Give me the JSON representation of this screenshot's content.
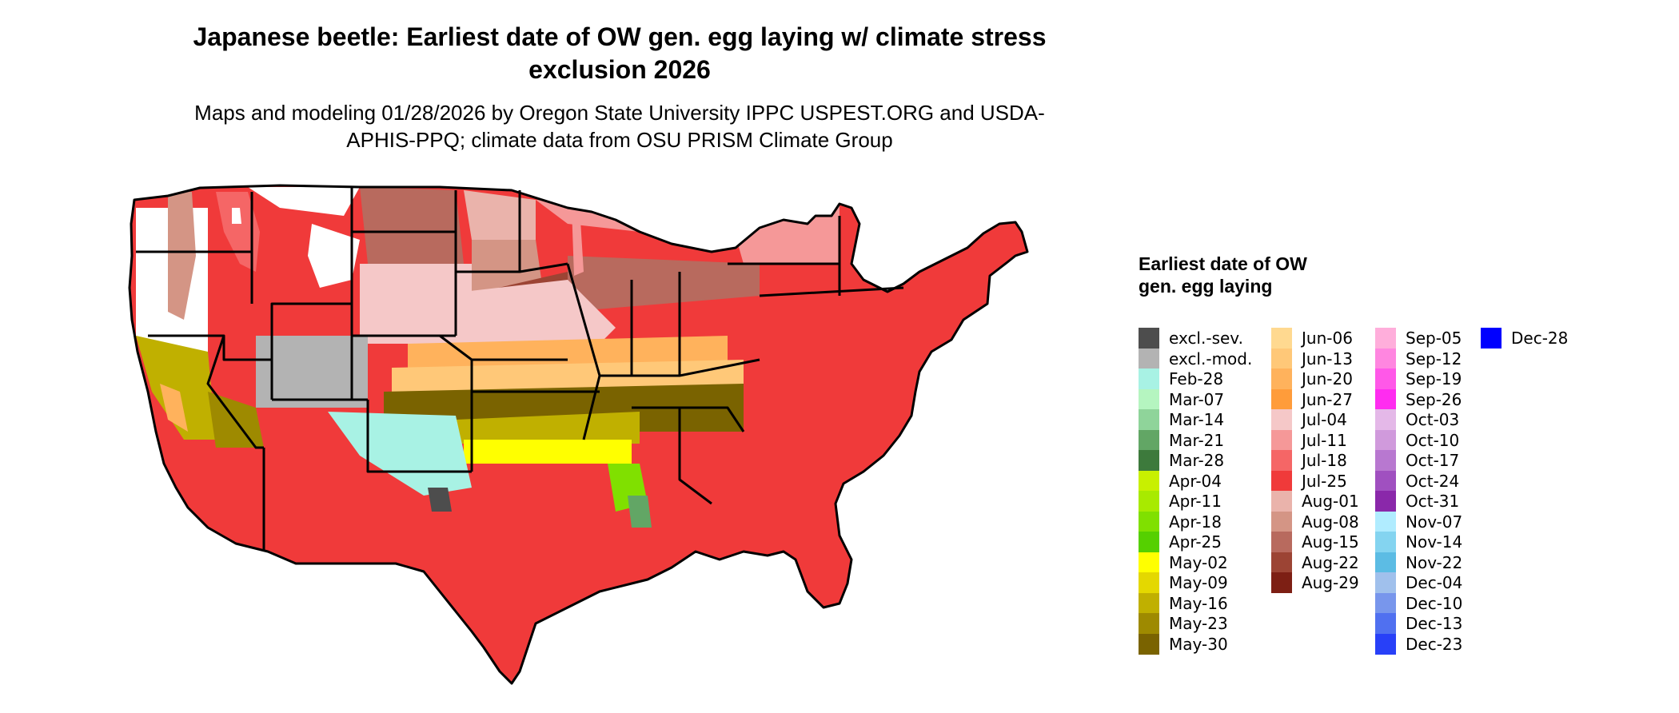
{
  "title": "Japanese beetle: Earliest date of OW gen. egg laying w/ climate stress exclusion 2026",
  "subtitle": "Maps and modeling 01/28/2026 by Oregon State University IPPC USPEST.ORG and USDA-APHIS-PPQ; climate data from OSU PRISM Climate Group",
  "legend": {
    "title": "Earliest date of OW gen. egg laying",
    "items": [
      {
        "label": "excl.-sev.",
        "color": "#4d4d4d"
      },
      {
        "label": "excl.-mod.",
        "color": "#b3b3b3"
      },
      {
        "label": "Feb-28",
        "color": "#a8f2e4"
      },
      {
        "label": "Mar-07",
        "color": "#b5f5c0"
      },
      {
        "label": "Mar-14",
        "color": "#8fd49a"
      },
      {
        "label": "Mar-21",
        "color": "#62a665"
      },
      {
        "label": "Mar-28",
        "color": "#3d7a3c"
      },
      {
        "label": "Apr-04",
        "color": "#c8f000"
      },
      {
        "label": "Apr-11",
        "color": "#a8ea00"
      },
      {
        "label": "Apr-18",
        "color": "#80e000"
      },
      {
        "label": "Apr-25",
        "color": "#55d000"
      },
      {
        "label": "May-02",
        "color": "#ffff00"
      },
      {
        "label": "May-09",
        "color": "#e4d800"
      },
      {
        "label": "May-16",
        "color": "#c0b000"
      },
      {
        "label": "May-23",
        "color": "#9e8a00"
      },
      {
        "label": "May-30",
        "color": "#7a6300"
      },
      {
        "label": "Jun-06",
        "color": "#ffd990"
      },
      {
        "label": "Jun-13",
        "color": "#ffc878"
      },
      {
        "label": "Jun-20",
        "color": "#ffb25c"
      },
      {
        "label": "Jun-27",
        "color": "#ff9c3a"
      },
      {
        "label": "Jul-04",
        "color": "#f5c8c8"
      },
      {
        "label": "Jul-11",
        "color": "#f59898"
      },
      {
        "label": "Jul-18",
        "color": "#f56666"
      },
      {
        "label": "Jul-25",
        "color": "#f03a3a"
      },
      {
        "label": "Aug-01",
        "color": "#eab3ab"
      },
      {
        "label": "Aug-08",
        "color": "#d49585"
      },
      {
        "label": "Aug-15",
        "color": "#b86a5e"
      },
      {
        "label": "Aug-22",
        "color": "#9c4434"
      },
      {
        "label": "Aug-29",
        "color": "#7d1f14"
      },
      {
        "label": "Sep-05",
        "color": "#ffaedb"
      },
      {
        "label": "Sep-12",
        "color": "#ff86e0"
      },
      {
        "label": "Sep-19",
        "color": "#ff58e8"
      },
      {
        "label": "Sep-26",
        "color": "#ff2cf0"
      },
      {
        "label": "Oct-03",
        "color": "#e4b8e8"
      },
      {
        "label": "Oct-10",
        "color": "#d09adc"
      },
      {
        "label": "Oct-17",
        "color": "#b878d0"
      },
      {
        "label": "Oct-24",
        "color": "#a050c0"
      },
      {
        "label": "Oct-31",
        "color": "#8a28aa"
      },
      {
        "label": "Nov-07",
        "color": "#b0ecff"
      },
      {
        "label": "Nov-14",
        "color": "#84d4f0"
      },
      {
        "label": "Nov-22",
        "color": "#5cbce4"
      },
      {
        "label": "Dec-04",
        "color": "#a0c0ec"
      },
      {
        "label": "Dec-10",
        "color": "#7896ec"
      },
      {
        "label": "Dec-13",
        "color": "#5070f0"
      },
      {
        "label": "Dec-23",
        "color": "#2840f8"
      },
      {
        "label": "Dec-28",
        "color": "#0000ff"
      }
    ]
  },
  "map": {
    "base_color": "#f03a3a",
    "border_color": "#000000",
    "regions": [
      {
        "name": "coast-excl",
        "color": "#ffffff"
      },
      {
        "name": "cascade",
        "color": "#d49585"
      },
      {
        "name": "pnw-july",
        "color": "#f56666"
      },
      {
        "name": "idaho",
        "color": "#ffffff"
      },
      {
        "name": "wyoming",
        "color": "#ffffff"
      },
      {
        "name": "montana-brown",
        "color": "#b86a5e"
      },
      {
        "name": "dakotas-top",
        "color": "#eab3ab"
      },
      {
        "name": "minnesota-north",
        "color": "#d49585"
      },
      {
        "name": "mn-south",
        "color": "#f59898"
      },
      {
        "name": "iowa",
        "color": "#f5c8c8"
      },
      {
        "name": "michigan-up",
        "color": "#9c4434"
      },
      {
        "name": "new-england",
        "color": "#b86a5e"
      },
      {
        "name": "nebraska",
        "color": "#f59898"
      },
      {
        "name": "ohio-pa",
        "color": "#f5c8c8"
      },
      {
        "name": "june",
        "color": "#ffb25c"
      },
      {
        "name": "june2",
        "color": "#ffc878"
      },
      {
        "name": "may30",
        "color": "#7a6300"
      },
      {
        "name": "may16",
        "color": "#c0b000"
      },
      {
        "name": "may02",
        "color": "#ffff00"
      },
      {
        "name": "apr",
        "color": "#80e000"
      },
      {
        "name": "march",
        "color": "#62a665"
      },
      {
        "name": "feb",
        "color": "#a8f2e4"
      },
      {
        "name": "texas-may",
        "color": "#c0b000"
      },
      {
        "name": "california",
        "color": "#ffb25c"
      },
      {
        "name": "ca-valley",
        "color": "#9e8a00"
      },
      {
        "name": "az-severe",
        "color": "#4d4d4d"
      },
      {
        "name": "az-mod",
        "color": "#b3b3b3"
      },
      {
        "name": "nm-pink",
        "color": "#f59898"
      },
      {
        "name": "lake-michigan",
        "color": "#ffffff"
      },
      {
        "name": "magenta-spots",
        "color": "#ff58e8"
      }
    ]
  }
}
